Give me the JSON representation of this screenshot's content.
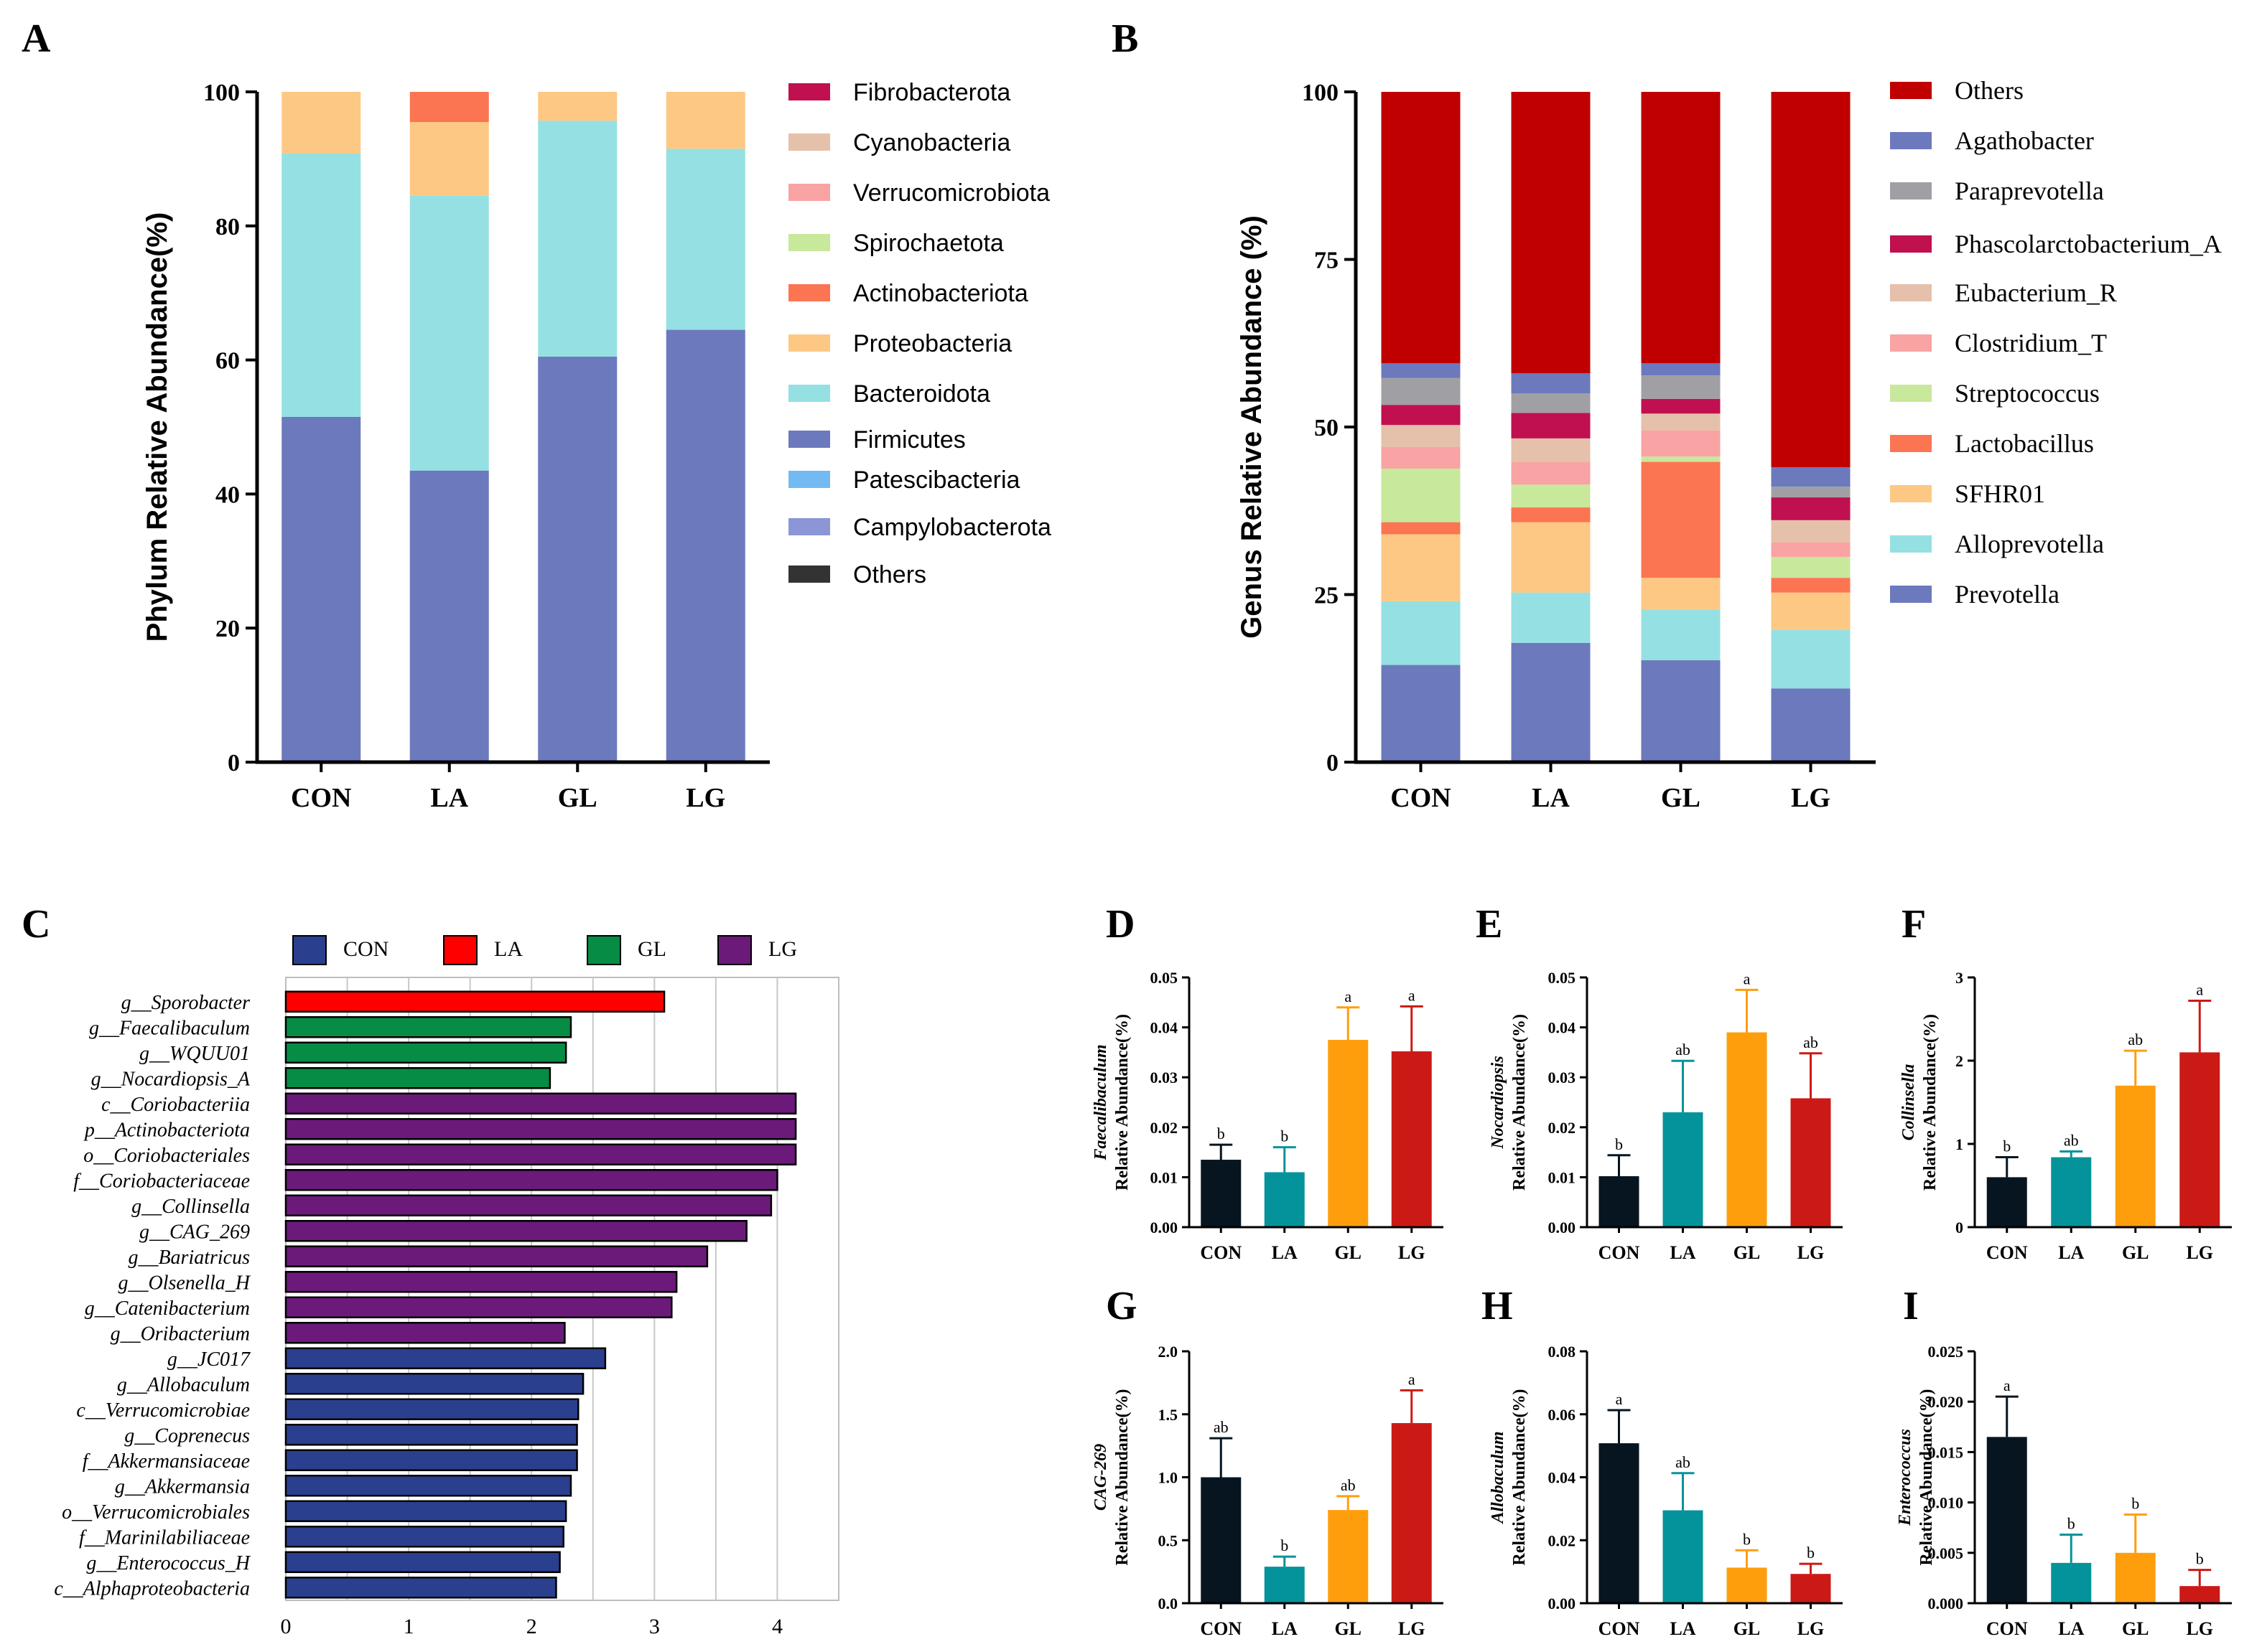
{
  "panel_labels": [
    "A",
    "B",
    "C",
    "D",
    "E",
    "F",
    "G",
    "H",
    "I"
  ],
  "chart_data": [
    {
      "id": "A",
      "type": "stacked-bar",
      "title": "",
      "ylabel": "Phylum Relative Abundance(%)",
      "xlabel": "",
      "categories": [
        "CON",
        "LA",
        "GL",
        "LG"
      ],
      "ylim": [
        0,
        100
      ],
      "yticks": [
        0,
        20,
        40,
        60,
        80,
        100
      ],
      "legend_position": "right",
      "legend": [
        {
          "name": "Fibrobacterota",
          "color": "#c0104f"
        },
        {
          "name": "Cyanobacteria",
          "color": "#e5c0ab"
        },
        {
          "name": "Verrucomicrobiota",
          "color": "#f9a3a4"
        },
        {
          "name": "Spirochaetota",
          "color": "#c8e89c"
        },
        {
          "name": "Actinobacteriota",
          "color": "#fb7552"
        },
        {
          "name": "Proteobacteria",
          "color": "#fdc884"
        },
        {
          "name": "Bacteroidota",
          "color": "#95e0e3"
        },
        {
          "name": "Firmicutes",
          "color": "#6c79bd"
        },
        {
          "name": "Patescibacteria",
          "color": "#73baf2"
        },
        {
          "name": "Campylobacterota",
          "color": "#8c96d6"
        },
        {
          "name": "Others",
          "color": "#333333"
        }
      ],
      "series": [
        {
          "name": "Firmicutes",
          "color": "#6c79bd",
          "values": [
            51.5,
            43.5,
            60.5,
            64.5
          ]
        },
        {
          "name": "Bacteroidota",
          "color": "#95e0e3",
          "values": [
            39.3,
            41.0,
            35.2,
            27.0
          ]
        },
        {
          "name": "Proteobacteria",
          "color": "#fdc884",
          "values": [
            9.2,
            11.0,
            4.3,
            8.5
          ]
        },
        {
          "name": "Actinobacteriota",
          "color": "#fb7552",
          "values": [
            0,
            4.5,
            0,
            0
          ]
        }
      ]
    },
    {
      "id": "B",
      "type": "stacked-bar",
      "title": "",
      "ylabel": "Genus Relative Abundance (%)",
      "xlabel": "",
      "categories": [
        "CON",
        "LA",
        "GL",
        "LG"
      ],
      "ylim": [
        0,
        100
      ],
      "yticks": [
        0,
        25,
        50,
        75,
        100
      ],
      "legend_position": "right",
      "legend": [
        {
          "name": "Others",
          "color": "#c00000"
        },
        {
          "name": "Agathobacter",
          "color": "#6c79bd"
        },
        {
          "name": "Paraprevotella",
          "color": "#a0a0a4"
        },
        {
          "name": "Phascolarctobacterium_A",
          "color": "#c0104f"
        },
        {
          "name": "Eubacterium_R",
          "color": "#e5c0ab"
        },
        {
          "name": "Clostridium_T",
          "color": "#f9a3a4"
        },
        {
          "name": "Streptococcus",
          "color": "#c8e89c"
        },
        {
          "name": "Lactobacillus",
          "color": "#fb7552"
        },
        {
          "name": "SFHR01",
          "color": "#fdc884"
        },
        {
          "name": "Alloprevotella",
          "color": "#95e0e3"
        },
        {
          "name": "Prevotella",
          "color": "#6c79bd"
        }
      ],
      "series": [
        {
          "name": "Prevotella",
          "color": "#6c79bd",
          "values": [
            14.5,
            17.8,
            15.2,
            11.0
          ]
        },
        {
          "name": "Alloprevotella",
          "color": "#95e0e3",
          "values": [
            9.5,
            7.5,
            7.5,
            8.7
          ]
        },
        {
          "name": "SFHR01",
          "color": "#fdc884",
          "values": [
            10.0,
            10.5,
            4.8,
            5.6
          ]
        },
        {
          "name": "Lactobacillus",
          "color": "#fb7552",
          "values": [
            1.8,
            2.2,
            17.3,
            2.2
          ]
        },
        {
          "name": "Streptococcus",
          "color": "#c8e89c",
          "values": [
            8.0,
            3.4,
            0.8,
            3.1
          ]
        },
        {
          "name": "Clostridium_T",
          "color": "#f9a3a4",
          "values": [
            3.2,
            3.4,
            3.9,
            2.2
          ]
        },
        {
          "name": "Eubacterium_R",
          "color": "#e5c0ab",
          "values": [
            3.3,
            3.5,
            2.5,
            3.3
          ]
        },
        {
          "name": "Phascolarctobacterium_A",
          "color": "#c0104f",
          "values": [
            3.0,
            3.8,
            2.2,
            3.4
          ]
        },
        {
          "name": "Paraprevotella",
          "color": "#a0a0a4",
          "values": [
            4.0,
            2.9,
            3.5,
            1.6
          ]
        },
        {
          "name": "Agathobacter",
          "color": "#6c79bd",
          "values": [
            2.2,
            3.0,
            1.8,
            2.9
          ]
        },
        {
          "name": "Others",
          "color": "#c00000",
          "values": [
            40.5,
            42.0,
            40.5,
            56.0
          ]
        }
      ]
    },
    {
      "id": "C",
      "type": "bar",
      "orientation": "horizontal",
      "title": "",
      "xlabel": "",
      "ylabel": "",
      "xlim": [
        0,
        4.5
      ],
      "xticks": [
        0,
        1,
        2,
        3,
        4
      ],
      "grid": true,
      "legend_position": "top",
      "legend": [
        {
          "name": "CON",
          "color": "#2b3f8f"
        },
        {
          "name": "LA",
          "color": "#ff0000"
        },
        {
          "name": "GL",
          "color": "#078c45"
        },
        {
          "name": "LG",
          "color": "#6b1a7a"
        }
      ],
      "bars": [
        {
          "label": "g__Sporobacter",
          "value": 3.08,
          "group": "LA"
        },
        {
          "label": "g__Faecalibaculum",
          "value": 2.32,
          "group": "GL"
        },
        {
          "label": "g__WQUU01",
          "value": 2.28,
          "group": "GL"
        },
        {
          "label": "g__Nocardiopsis_A",
          "value": 2.15,
          "group": "GL"
        },
        {
          "label": "c__Coriobacteriia",
          "value": 4.15,
          "group": "LG"
        },
        {
          "label": "p__Actinobacteriota",
          "value": 4.15,
          "group": "LG"
        },
        {
          "label": "o__Coriobacteriales",
          "value": 4.15,
          "group": "LG"
        },
        {
          "label": "f__Coriobacteriaceae",
          "value": 4.0,
          "group": "LG"
        },
        {
          "label": "g__Collinsella",
          "value": 3.95,
          "group": "LG"
        },
        {
          "label": "g__CAG_269",
          "value": 3.75,
          "group": "LG"
        },
        {
          "label": "g__Bariatricus",
          "value": 3.43,
          "group": "LG"
        },
        {
          "label": "g__Olsenella_H",
          "value": 3.18,
          "group": "LG"
        },
        {
          "label": "g__Catenibacterium",
          "value": 3.14,
          "group": "LG"
        },
        {
          "label": "g__Oribacterium",
          "value": 2.27,
          "group": "LG"
        },
        {
          "label": "g__JC017",
          "value": 2.6,
          "group": "CON"
        },
        {
          "label": "g__Allobaculum",
          "value": 2.42,
          "group": "CON"
        },
        {
          "label": "c__Verrucomicrobiae",
          "value": 2.38,
          "group": "CON"
        },
        {
          "label": "g__Coprenecus",
          "value": 2.37,
          "group": "CON"
        },
        {
          "label": "f__Akkermansiaceae",
          "value": 2.37,
          "group": "CON"
        },
        {
          "label": "g__Akkermansia",
          "value": 2.32,
          "group": "CON"
        },
        {
          "label": "o__Verrucomicrobiales",
          "value": 2.28,
          "group": "CON"
        },
        {
          "label": "f__Marinilabiliaceae",
          "value": 2.26,
          "group": "CON"
        },
        {
          "label": "g__Enterococcus_H",
          "value": 2.23,
          "group": "CON"
        },
        {
          "label": "c__Alphaproteobacteria",
          "value": 2.2,
          "group": "CON"
        }
      ]
    },
    {
      "id": "D",
      "type": "bar",
      "title": "",
      "ylabel_italic": "Faecalibaculum",
      "ylabel": "Relative Abundance(%)",
      "categories": [
        "CON",
        "LA",
        "GL",
        "LG"
      ],
      "colors": [
        "#061520",
        "#05939b",
        "#ff9e0d",
        "#cb1a16"
      ],
      "values": [
        0.0135,
        0.011,
        0.0375,
        0.0352
      ],
      "errors": [
        0.003,
        0.005,
        0.0065,
        0.009
      ],
      "letters": [
        "b",
        "b",
        "a",
        "a"
      ],
      "ylim": [
        0,
        0.05
      ],
      "yticks": [
        "0.00",
        "0.01",
        "0.02",
        "0.03",
        "0.04",
        "0.05"
      ]
    },
    {
      "id": "E",
      "type": "bar",
      "title": "",
      "ylabel_italic": "Nocardiopsis",
      "ylabel": "Relative Abundance(%)",
      "categories": [
        "CON",
        "LA",
        "GL",
        "LG"
      ],
      "colors": [
        "#061520",
        "#05939b",
        "#ff9e0d",
        "#cb1a16"
      ],
      "values": [
        0.0102,
        0.023,
        0.039,
        0.0258
      ],
      "errors": [
        0.0042,
        0.0103,
        0.0085,
        0.009
      ],
      "letters": [
        "b",
        "ab",
        "a",
        "ab"
      ],
      "ylim": [
        0,
        0.05
      ],
      "yticks": [
        "0.00",
        "0.01",
        "0.02",
        "0.03",
        "0.04",
        "0.05"
      ]
    },
    {
      "id": "F",
      "type": "bar",
      "title": "",
      "ylabel_italic": "Collinsella",
      "ylabel": "Relative Abundance(%)",
      "categories": [
        "CON",
        "LA",
        "GL",
        "LG"
      ],
      "colors": [
        "#061520",
        "#05939b",
        "#ff9e0d",
        "#cb1a16"
      ],
      "values": [
        0.6,
        0.84,
        1.7,
        2.1
      ],
      "errors": [
        0.24,
        0.07,
        0.42,
        0.62
      ],
      "letters": [
        "b",
        "ab",
        "ab",
        "a"
      ],
      "ylim": [
        0,
        3
      ],
      "yticks": [
        "0",
        "1",
        "2",
        "3"
      ]
    },
    {
      "id": "G",
      "type": "bar",
      "title": "",
      "ylabel_italic": "CAG-269",
      "ylabel": "Relative Abundance(%)",
      "categories": [
        "CON",
        "LA",
        "GL",
        "LG"
      ],
      "colors": [
        "#061520",
        "#05939b",
        "#ff9e0d",
        "#cb1a16"
      ],
      "values": [
        1.0,
        0.29,
        0.74,
        1.43
      ],
      "errors": [
        0.31,
        0.08,
        0.11,
        0.26
      ],
      "letters": [
        "ab",
        "b",
        "ab",
        "a"
      ],
      "ylim": [
        0,
        2.0
      ],
      "yticks": [
        "0.0",
        "0.5",
        "1.0",
        "1.5",
        "2.0"
      ]
    },
    {
      "id": "H",
      "type": "bar",
      "title": "",
      "ylabel_italic": "Allobaculum",
      "ylabel": "Relative Abundance(%)",
      "categories": [
        "CON",
        "LA",
        "GL",
        "LG"
      ],
      "colors": [
        "#061520",
        "#05939b",
        "#ff9e0d",
        "#cb1a16"
      ],
      "values": [
        0.0508,
        0.0295,
        0.0113,
        0.0093
      ],
      "errors": [
        0.0105,
        0.0118,
        0.0055,
        0.0032
      ],
      "letters": [
        "a",
        "ab",
        "b",
        "b"
      ],
      "ylim": [
        0,
        0.08
      ],
      "yticks": [
        "0.00",
        "0.02",
        "0.04",
        "0.06",
        "0.08"
      ]
    },
    {
      "id": "I",
      "type": "bar",
      "title": "",
      "ylabel_italic": "Enterococcus",
      "ylabel": "Relative Abundance(%)",
      "categories": [
        "CON",
        "LA",
        "GL",
        "LG"
      ],
      "colors": [
        "#061520",
        "#05939b",
        "#ff9e0d",
        "#cb1a16"
      ],
      "values": [
        0.0165,
        0.004,
        0.005,
        0.0017
      ],
      "errors": [
        0.004,
        0.0028,
        0.0038,
        0.0016
      ],
      "letters": [
        "a",
        "b",
        "b",
        "b"
      ],
      "ylim": [
        0,
        0.025
      ],
      "yticks": [
        "0.000",
        "0.005",
        "0.010",
        "0.015",
        "0.020",
        "0.025"
      ]
    }
  ]
}
